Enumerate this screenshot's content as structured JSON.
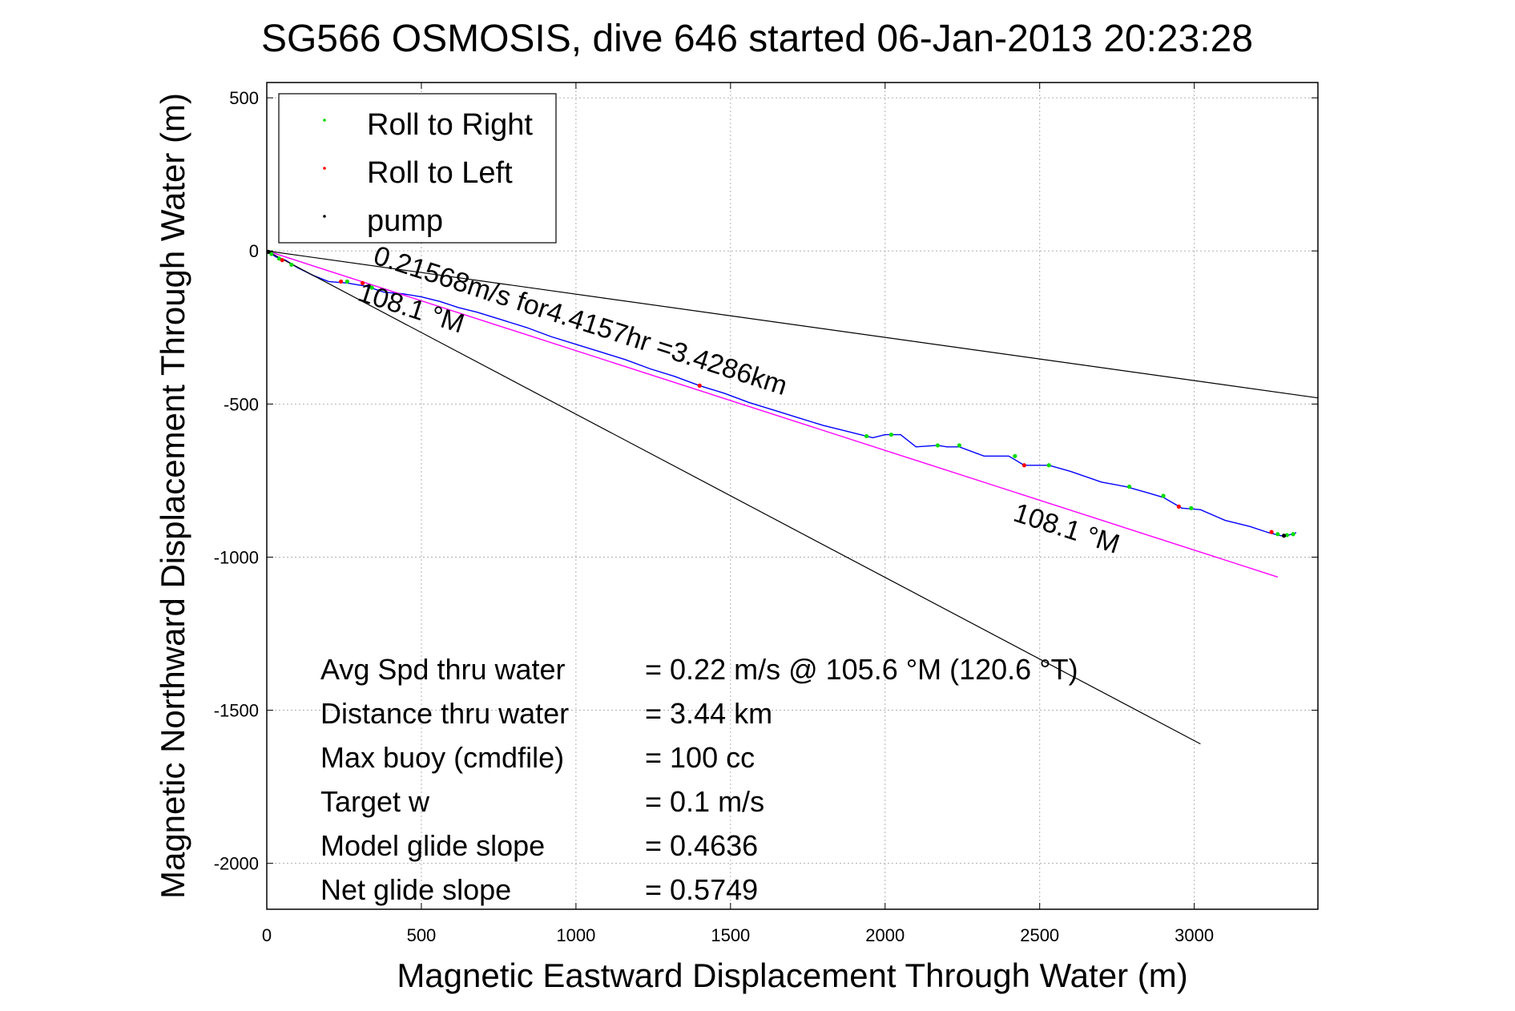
{
  "chart_data": {
    "type": "line",
    "title": "SG566 OSMOSIS, dive 646 started 06-Jan-2013 20:23:28",
    "xlabel": "Magnetic Eastward Displacement Through Water (m)",
    "ylabel": "Magnetic Northward Displacement Through Water (m)",
    "xlim": [
      0,
      3400
    ],
    "ylim": [
      -2150,
      550
    ],
    "x_ticks": [
      0,
      500,
      1000,
      1500,
      2000,
      2500,
      3000
    ],
    "y_ticks": [
      500,
      0,
      -500,
      -1000,
      -1500,
      -2000
    ],
    "grid": true,
    "legend_position": "top-left",
    "legend": [
      {
        "label": "Roll to Right",
        "color": "#00dd00"
      },
      {
        "label": "Roll to Left",
        "color": "#ff0000"
      },
      {
        "label": "pump",
        "color": "#000000"
      }
    ],
    "colors": {
      "track": "#0000ff",
      "heading": "#ff00ff",
      "bounds": "#000000",
      "right": "#00dd00",
      "left": "#ff0000",
      "pump": "#000000",
      "grid": "#b0b0b0"
    },
    "series": [
      {
        "name": "track",
        "x": [
          0,
          30,
          60,
          100,
          150,
          200,
          260,
          320,
          380,
          440,
          500,
          560,
          620,
          680,
          760,
          840,
          920,
          1000,
          1080,
          1160,
          1240,
          1320,
          1400,
          1480,
          1560,
          1640,
          1720,
          1800,
          1880,
          1960,
          2000,
          2050,
          2100,
          2170,
          2200,
          2240,
          2320,
          2400,
          2450,
          2530,
          2600,
          2700,
          2780,
          2850,
          2900,
          2960,
          3020,
          3100,
          3180,
          3240,
          3280,
          3300,
          3330
        ],
        "y": [
          0,
          -20,
          -30,
          -55,
          -80,
          -100,
          -105,
          -115,
          -135,
          -140,
          -150,
          -165,
          -185,
          -200,
          -225,
          -250,
          -280,
          -305,
          -330,
          -355,
          -385,
          -410,
          -440,
          -465,
          -495,
          -520,
          -545,
          -570,
          -590,
          -610,
          -600,
          -600,
          -640,
          -635,
          -640,
          -640,
          -670,
          -670,
          -700,
          -700,
          -720,
          -755,
          -770,
          -790,
          -805,
          -840,
          -845,
          -880,
          -900,
          -920,
          -930,
          -930,
          -920
        ]
      },
      {
        "name": "heading",
        "x": [
          0,
          3270
        ],
        "y": [
          0,
          -1065
        ]
      },
      {
        "name": "upper bound",
        "x": [
          0,
          3400
        ],
        "y": [
          0,
          -480
        ]
      },
      {
        "name": "lower bound",
        "x": [
          0,
          3020
        ],
        "y": [
          0,
          -1610
        ]
      }
    ],
    "markers": {
      "right": {
        "x": [
          15,
          40,
          80,
          260,
          340,
          1940,
          2020,
          2170,
          2240,
          2420,
          2530,
          2790,
          2900,
          2990,
          3270,
          3300,
          3320
        ],
        "y": [
          -10,
          -25,
          -45,
          -100,
          -120,
          -605,
          -600,
          -635,
          -635,
          -670,
          -700,
          -770,
          -800,
          -840,
          -925,
          -928,
          -925
        ]
      },
      "left": {
        "x": [
          50,
          240,
          310,
          1400,
          2450,
          2950,
          3250
        ],
        "y": [
          -30,
          -100,
          -105,
          -440,
          -700,
          -835,
          -918
        ]
      },
      "pump": {
        "x": [
          5,
          3290
        ],
        "y": [
          -3,
          -930
        ]
      }
    },
    "annotations": [
      {
        "text": "0.21568m/s for4.4157hr =3.4286km",
        "x": 340,
        "y": -40,
        "angle": 17.8
      },
      {
        "text": "108.1 °M",
        "x": 290,
        "y": -160,
        "angle": 17.8
      },
      {
        "text": "108.1 °M",
        "x": 2410,
        "y": -880,
        "angle": 17.8
      }
    ],
    "stats": [
      {
        "label": "Avg Spd thru water",
        "value": "=  0.22 m/s @ 105.6 °M (120.6 °T)"
      },
      {
        "label": "Distance thru water",
        "value": "=  3.44 km"
      },
      {
        "label": "Max buoy (cmdfile)",
        "value": "= 100 cc"
      },
      {
        "label": "Target w",
        "value": "= 0.1 m/s"
      },
      {
        "label": "Model glide slope",
        "value": "= 0.4636"
      },
      {
        "label": "Net glide slope",
        "value": "= 0.5749"
      }
    ]
  }
}
